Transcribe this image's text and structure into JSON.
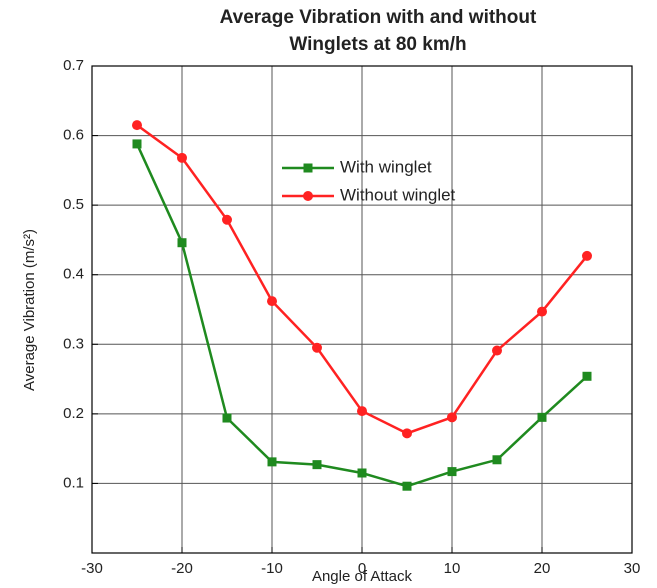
{
  "chart_data": {
    "type": "line",
    "title": [
      "Average Vibration with and without",
      "Winglets at 80 km/h"
    ],
    "xlabel": "Angle of Attack",
    "ylabel": "Average Vibration (m/s²)",
    "x": [
      -25,
      -20,
      -15,
      -10,
      -5,
      0,
      5,
      10,
      15,
      20,
      25
    ],
    "series": [
      {
        "name": "With winglet",
        "color": "#1f8a1f",
        "marker": "square",
        "values": [
          0.588,
          0.446,
          0.194,
          0.131,
          0.127,
          0.115,
          0.096,
          0.117,
          0.134,
          0.195,
          0.254
        ]
      },
      {
        "name": "Without winglet",
        "color": "#ff2222",
        "marker": "circle",
        "values": [
          0.615,
          0.568,
          0.479,
          0.362,
          0.295,
          0.204,
          0.172,
          0.195,
          0.291,
          0.347,
          0.427
        ]
      }
    ],
    "xlim": [
      -30,
      30
    ],
    "xticks": [
      -30,
      -20,
      -10,
      0,
      10,
      20,
      30
    ],
    "ylim": [
      0,
      0.7
    ],
    "yticks": [
      0.1,
      0.2,
      0.3,
      0.4,
      0.5,
      0.6,
      0.7
    ],
    "grid": true,
    "legend": "upper center"
  }
}
